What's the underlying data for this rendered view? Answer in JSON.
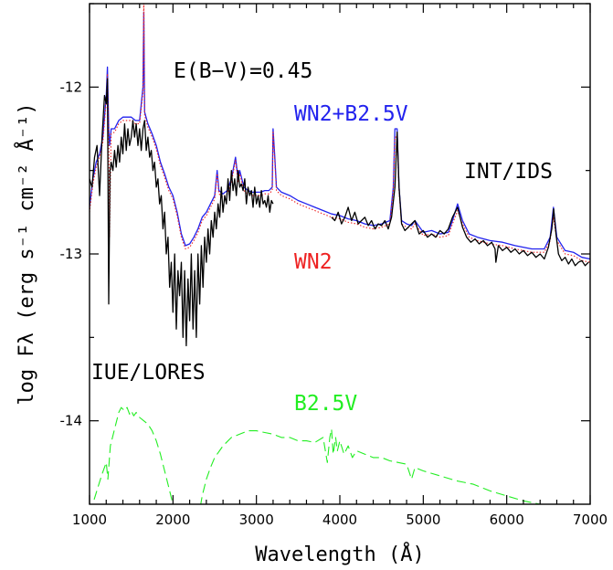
{
  "chart_data": {
    "type": "line",
    "xlabel": "Wavelength (Å)",
    "ylabel": "log Fλ (erg s⁻¹ cm⁻² Å⁻¹)",
    "xlim": [
      1000,
      7000
    ],
    "ylim": [
      -14.5,
      -11.5
    ],
    "xticks": [
      1000,
      2000,
      3000,
      4000,
      5000,
      6000,
      7000
    ],
    "yticks": [
      -12,
      -13,
      -14
    ],
    "xtick_labels": [
      "1000",
      "2000",
      "3000",
      "4000",
      "5000",
      "6000",
      "7000"
    ],
    "ytick_labels": [
      "-12",
      "-13",
      "-14"
    ],
    "annotations": [
      {
        "text": "E(B−V)=0.45",
        "color": "#000000"
      },
      {
        "text": "WN2+B2.5V",
        "color": "#2222ee"
      },
      {
        "text": "INT/IDS",
        "color": "#000000"
      },
      {
        "text": "WN2",
        "color": "#ee2222"
      },
      {
        "text": "IUE/LORES",
        "color": "#000000"
      },
      {
        "text": "B2.5V",
        "color": "#22ee22"
      }
    ],
    "series": [
      {
        "name": "WN2+B2.5V",
        "color": "#2222ee",
        "style": "solid",
        "x": [
          1000,
          1040,
          1080,
          1120,
          1160,
          1200,
          1215,
          1230,
          1240,
          1260,
          1300,
          1350,
          1400,
          1450,
          1500,
          1550,
          1600,
          1640,
          1650,
          1660,
          1700,
          1750,
          1800,
          1850,
          1900,
          1950,
          2000,
          2050,
          2100,
          2150,
          2200,
          2250,
          2300,
          2350,
          2400,
          2450,
          2500,
          2530,
          2550,
          2600,
          2650,
          2700,
          2750,
          2780,
          2800,
          2850,
          2900,
          2950,
          3000,
          3050,
          3100,
          3150,
          3190,
          3200,
          3220,
          3240,
          3300,
          3400,
          3500,
          3600,
          3700,
          3800,
          3900,
          4000,
          4100,
          4200,
          4300,
          4400,
          4500,
          4600,
          4640,
          4660,
          4686,
          4710,
          4740,
          4800,
          4860,
          4900,
          5000,
          5100,
          5200,
          5300,
          5350,
          5411,
          5470,
          5550,
          5650,
          5800,
          5950,
          6100,
          6300,
          6450,
          6520,
          6560,
          6600,
          6700,
          6800,
          6900,
          7000
        ],
        "y": [
          -12.72,
          -12.55,
          -12.45,
          -12.4,
          -12.3,
          -12.05,
          -11.88,
          -12.25,
          -12.35,
          -12.25,
          -12.25,
          -12.2,
          -12.18,
          -12.18,
          -12.18,
          -12.2,
          -12.2,
          -12.0,
          -11.55,
          -12.15,
          -12.22,
          -12.28,
          -12.35,
          -12.45,
          -12.52,
          -12.6,
          -12.65,
          -12.75,
          -12.88,
          -12.95,
          -12.94,
          -12.9,
          -12.85,
          -12.78,
          -12.75,
          -12.7,
          -12.65,
          -12.5,
          -12.62,
          -12.64,
          -12.62,
          -12.55,
          -12.42,
          -12.55,
          -12.5,
          -12.6,
          -12.62,
          -12.63,
          -12.63,
          -12.63,
          -12.62,
          -12.62,
          -12.6,
          -12.25,
          -12.42,
          -12.6,
          -12.63,
          -12.65,
          -12.68,
          -12.7,
          -12.72,
          -12.74,
          -12.76,
          -12.77,
          -12.79,
          -12.8,
          -12.82,
          -12.83,
          -12.82,
          -12.8,
          -12.6,
          -12.25,
          -12.25,
          -12.6,
          -12.8,
          -12.82,
          -12.83,
          -12.8,
          -12.87,
          -12.86,
          -12.88,
          -12.87,
          -12.8,
          -12.7,
          -12.8,
          -12.88,
          -12.9,
          -12.92,
          -12.93,
          -12.95,
          -12.97,
          -12.97,
          -12.9,
          -12.72,
          -12.9,
          -12.98,
          -12.99,
          -13.02,
          -13.03
        ]
      },
      {
        "name": "WN2",
        "color": "#ee2222",
        "style": "dotted",
        "x": [
          1000,
          1040,
          1080,
          1120,
          1160,
          1200,
          1215,
          1230,
          1240,
          1260,
          1300,
          1350,
          1400,
          1450,
          1500,
          1550,
          1600,
          1640,
          1650,
          1660,
          1700,
          1750,
          1800,
          1850,
          1900,
          1950,
          2000,
          2050,
          2100,
          2150,
          2200,
          2250,
          2300,
          2350,
          2400,
          2450,
          2500,
          2530,
          2550,
          2600,
          2650,
          2700,
          2750,
          2780,
          2800,
          2850,
          2900,
          2950,
          3000,
          3050,
          3100,
          3150,
          3190,
          3200,
          3220,
          3240,
          3300,
          3400,
          3500,
          3600,
          3700,
          3800,
          3900,
          4000,
          4100,
          4200,
          4300,
          4400,
          4500,
          4600,
          4640,
          4660,
          4686,
          4710,
          4740,
          4800,
          4860,
          4900,
          5000,
          5100,
          5200,
          5300,
          5350,
          5411,
          5470,
          5550,
          5650,
          5800,
          5950,
          6100,
          6300,
          6450,
          6520,
          6560,
          6600,
          6700,
          6800,
          6900,
          7000
        ],
        "y": [
          -12.75,
          -12.58,
          -12.48,
          -12.42,
          -12.33,
          -12.08,
          -11.92,
          -12.28,
          -12.9,
          -12.28,
          -12.27,
          -12.22,
          -12.2,
          -12.2,
          -12.2,
          -12.22,
          -12.22,
          -12.03,
          -11.45,
          -12.17,
          -12.24,
          -12.3,
          -12.37,
          -12.47,
          -12.54,
          -12.62,
          -12.67,
          -12.77,
          -12.9,
          -12.97,
          -12.96,
          -12.92,
          -12.87,
          -12.8,
          -12.77,
          -12.72,
          -12.67,
          -12.52,
          -12.64,
          -12.66,
          -12.64,
          -12.57,
          -12.44,
          -12.57,
          -12.52,
          -12.62,
          -12.64,
          -12.65,
          -12.65,
          -12.65,
          -12.64,
          -12.64,
          -12.62,
          -12.27,
          -12.44,
          -12.62,
          -12.65,
          -12.67,
          -12.7,
          -12.72,
          -12.74,
          -12.76,
          -12.78,
          -12.79,
          -12.81,
          -12.82,
          -12.84,
          -12.85,
          -12.84,
          -12.82,
          -12.62,
          -12.3,
          -12.3,
          -12.62,
          -12.82,
          -12.84,
          -12.85,
          -12.82,
          -12.89,
          -12.88,
          -12.9,
          -12.89,
          -12.82,
          -12.74,
          -12.82,
          -12.9,
          -12.92,
          -12.94,
          -12.95,
          -12.97,
          -12.99,
          -12.99,
          -12.92,
          -12.78,
          -12.92,
          -13.0,
          -13.01,
          -13.04,
          -13.05
        ]
      },
      {
        "name": "IUE/LORES",
        "color": "#000000",
        "style": "solid",
        "x": [
          1000,
          1030,
          1060,
          1090,
          1120,
          1150,
          1180,
          1200,
          1215,
          1230,
          1245,
          1260,
          1280,
          1300,
          1320,
          1340,
          1360,
          1380,
          1400,
          1420,
          1440,
          1460,
          1480,
          1500,
          1520,
          1540,
          1560,
          1580,
          1600,
          1620,
          1640,
          1660,
          1680,
          1700,
          1720,
          1740,
          1760,
          1780,
          1800,
          1820,
          1840,
          1860,
          1880,
          1900,
          1920,
          1940,
          1960,
          1980,
          2000,
          2020,
          2040,
          2060,
          2080,
          2100,
          2120,
          2140,
          2160,
          2180,
          2200,
          2220,
          2240,
          2260,
          2280,
          2300,
          2320,
          2340,
          2360,
          2380,
          2400,
          2420,
          2440,
          2460,
          2480,
          2500,
          2520,
          2540,
          2560,
          2580,
          2600,
          2620,
          2640,
          2660,
          2680,
          2700,
          2720,
          2740,
          2760,
          2780,
          2800,
          2820,
          2840,
          2860,
          2880,
          2900,
          2920,
          2940,
          2960,
          2980,
          3000,
          3020,
          3040,
          3060,
          3080,
          3100,
          3120,
          3140,
          3160,
          3180,
          3200
        ],
        "y": [
          -12.55,
          -12.6,
          -12.42,
          -12.35,
          -12.65,
          -12.3,
          -12.05,
          -12.1,
          -11.95,
          -13.3,
          -12.5,
          -12.45,
          -12.5,
          -12.38,
          -12.48,
          -12.35,
          -12.45,
          -12.3,
          -12.4,
          -12.22,
          -12.38,
          -12.25,
          -12.35,
          -12.3,
          -12.2,
          -12.3,
          -12.22,
          -12.35,
          -12.25,
          -12.38,
          -12.25,
          -12.2,
          -12.38,
          -12.3,
          -12.42,
          -12.38,
          -12.5,
          -12.45,
          -12.6,
          -12.55,
          -12.7,
          -12.65,
          -12.85,
          -12.75,
          -13.0,
          -12.9,
          -13.2,
          -13.05,
          -13.35,
          -13.0,
          -13.45,
          -13.1,
          -13.25,
          -13.05,
          -13.5,
          -13.1,
          -13.55,
          -13.15,
          -13.4,
          -13.0,
          -13.45,
          -13.1,
          -13.5,
          -13.0,
          -13.3,
          -12.95,
          -13.2,
          -12.9,
          -13.05,
          -12.85,
          -13.0,
          -12.8,
          -12.9,
          -12.75,
          -12.85,
          -12.7,
          -12.78,
          -12.6,
          -12.75,
          -12.65,
          -12.7,
          -12.55,
          -12.68,
          -12.5,
          -12.62,
          -12.55,
          -12.65,
          -12.5,
          -12.6,
          -12.58,
          -12.62,
          -12.55,
          -12.7,
          -12.6,
          -12.65,
          -12.62,
          -12.72,
          -12.6,
          -12.7,
          -12.65,
          -12.72,
          -12.62,
          -12.7,
          -12.68,
          -12.72,
          -12.65,
          -12.75,
          -12.68,
          -12.7
        ]
      },
      {
        "name": "INT/IDS",
        "color": "#000000",
        "style": "solid",
        "x": [
          3900,
          3940,
          3980,
          4020,
          4060,
          4100,
          4140,
          4180,
          4220,
          4260,
          4300,
          4340,
          4380,
          4420,
          4460,
          4500,
          4540,
          4580,
          4620,
          4660,
          4686,
          4710,
          4740,
          4780,
          4820,
          4860,
          4900,
          4950,
          5000,
          5050,
          5100,
          5150,
          5200,
          5250,
          5300,
          5350,
          5411,
          5470,
          5520,
          5570,
          5620,
          5670,
          5720,
          5770,
          5820,
          5860,
          5870,
          5900,
          5950,
          6000,
          6050,
          6100,
          6150,
          6200,
          6250,
          6300,
          6350,
          6400,
          6450,
          6500,
          6540,
          6562,
          6590,
          6620,
          6660,
          6700,
          6740,
          6780,
          6820,
          6860,
          6900,
          6940,
          6980
        ],
        "y": [
          -12.78,
          -12.8,
          -12.75,
          -12.82,
          -12.78,
          -12.72,
          -12.8,
          -12.75,
          -12.82,
          -12.8,
          -12.78,
          -12.83,
          -12.8,
          -12.85,
          -12.82,
          -12.83,
          -12.8,
          -12.85,
          -12.78,
          -12.6,
          -12.27,
          -12.6,
          -12.82,
          -12.86,
          -12.84,
          -12.82,
          -12.8,
          -12.88,
          -12.86,
          -12.9,
          -12.88,
          -12.9,
          -12.86,
          -12.88,
          -12.85,
          -12.78,
          -12.72,
          -12.84,
          -12.9,
          -12.93,
          -12.91,
          -12.94,
          -12.92,
          -12.95,
          -12.93,
          -12.97,
          -13.05,
          -12.95,
          -12.98,
          -12.96,
          -12.99,
          -12.97,
          -13.0,
          -12.98,
          -13.01,
          -12.99,
          -13.02,
          -13.0,
          -13.03,
          -12.96,
          -12.85,
          -12.73,
          -12.88,
          -13.0,
          -13.04,
          -13.02,
          -13.06,
          -13.03,
          -13.07,
          -13.05,
          -13.04,
          -13.07,
          -13.05
        ]
      },
      {
        "name": "B2.5V",
        "color": "#22ee22",
        "style": "dashed",
        "x": [
          1000,
          1050,
          1100,
          1150,
          1200,
          1220,
          1250,
          1300,
          1350,
          1380,
          1420,
          1450,
          1480,
          1500,
          1530,
          1560,
          1600,
          1650,
          1700,
          1750,
          1800,
          1850,
          1900,
          1950,
          2000,
          2050,
          2100,
          2150,
          2200,
          2250,
          2300,
          2350,
          2400,
          2450,
          2500,
          2600,
          2700,
          2800,
          2900,
          3000,
          3100,
          3200,
          3300,
          3400,
          3500,
          3600,
          3700,
          3800,
          3850,
          3880,
          3900,
          3920,
          3950,
          3970,
          4000,
          4050,
          4100,
          4150,
          4200,
          4300,
          4400,
          4500,
          4600,
          4700,
          4800,
          4860,
          4900,
          5000,
          5200,
          5400,
          5600,
          5800,
          6000,
          6200,
          6400,
          6600,
          6800,
          7000
        ],
        "y": [
          -14.55,
          -14.48,
          -14.4,
          -14.32,
          -14.25,
          -14.35,
          -14.15,
          -14.05,
          -13.95,
          -13.92,
          -13.94,
          -13.92,
          -13.96,
          -13.94,
          -13.97,
          -13.95,
          -13.98,
          -14.0,
          -14.02,
          -14.06,
          -14.12,
          -14.2,
          -14.3,
          -14.4,
          -14.5,
          -14.6,
          -14.75,
          -14.9,
          -14.95,
          -14.8,
          -14.6,
          -14.45,
          -14.35,
          -14.28,
          -14.22,
          -14.15,
          -14.1,
          -14.08,
          -14.06,
          -14.06,
          -14.07,
          -14.08,
          -14.1,
          -14.1,
          -14.12,
          -14.12,
          -14.13,
          -14.1,
          -14.25,
          -14.1,
          -14.05,
          -14.2,
          -14.1,
          -14.18,
          -14.12,
          -14.2,
          -14.15,
          -14.22,
          -14.18,
          -14.2,
          -14.22,
          -14.22,
          -14.24,
          -14.25,
          -14.26,
          -14.35,
          -14.28,
          -14.3,
          -14.33,
          -14.36,
          -14.38,
          -14.42,
          -14.45,
          -14.48,
          -14.5,
          -14.55,
          -14.6,
          -14.65
        ]
      }
    ]
  }
}
